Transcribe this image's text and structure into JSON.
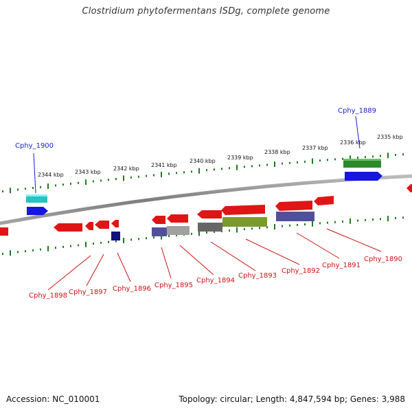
{
  "title": "Clostridium phytofermentans ISDg, complete genome",
  "accession": "Accession: NC_010001",
  "topology": "Topology: circular; Length: 4,847,594 bp; Genes: 3,988",
  "kbp_labels": [
    "2344 kbp",
    "2343 kbp",
    "2342 kbp",
    "2341 kbp",
    "2340 kbp",
    "2339 kbp",
    "2338 kbp",
    "2337 kbp",
    "2336 kbp",
    "2335 kbp"
  ],
  "genes": [
    {
      "id": "Cphy_1900",
      "label": "Cphy_1900",
      "color": "#1a1acc"
    },
    {
      "id": "Cphy_1889",
      "label": "Cphy_1889",
      "color": "#1a1acc"
    },
    {
      "id": "Cphy_1898",
      "label": "Cphy_1898",
      "color": "#cc1111"
    },
    {
      "id": "Cphy_1897",
      "label": "Cphy_1897",
      "color": "#cc1111"
    },
    {
      "id": "Cphy_1896",
      "label": "Cphy_1896",
      "color": "#cc1111"
    },
    {
      "id": "Cphy_1895",
      "label": "Cphy_1895",
      "color": "#cc1111"
    },
    {
      "id": "Cphy_1894",
      "label": "Cphy_1894",
      "color": "#cc1111"
    },
    {
      "id": "Cphy_1893",
      "label": "Cphy_1893",
      "color": "#cc1111"
    },
    {
      "id": "Cphy_1892",
      "label": "Cphy_1892",
      "color": "#cc1111"
    },
    {
      "id": "Cphy_1891",
      "label": "Cphy_1891",
      "color": "#cc1111"
    },
    {
      "id": "Cphy_1890",
      "label": "Cphy_1890",
      "color": "#cc1111"
    }
  ],
  "colors": {
    "backbone": "#8a8a8a",
    "tick": "#1e7a1e",
    "forward_gene": "#e01515",
    "cds_teal": "#22c4c4",
    "cds_blue": "#1616e0",
    "cds_green": "#2a8a2a",
    "cds_navy": "#12127a",
    "cds_slate": "#50509a",
    "cds_grey": "#a0a0a0",
    "cds_darkgrey": "#666666",
    "cds_olive": "#7a9a2a"
  }
}
